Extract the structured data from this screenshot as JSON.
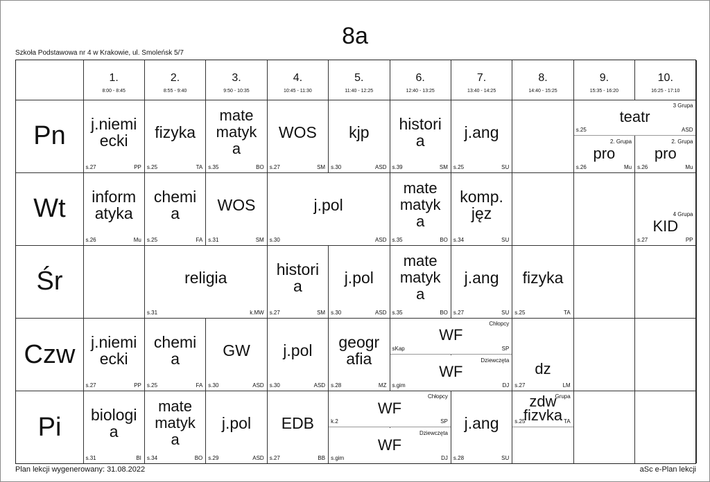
{
  "title": "8a",
  "school": "Szkoła Podstawowa nr 4 w Krakowie, ul. Smoleńsk 5/7",
  "footer": {
    "generated": "Plan lekcji wygenerowany: 31.08.2022",
    "app": "aSc e-Plan lekcji"
  },
  "periods": [
    {
      "num": "1.",
      "time": "8:00 - 8:45"
    },
    {
      "num": "2.",
      "time": "8:55 - 9:40"
    },
    {
      "num": "3.",
      "time": "9:50 - 10:35"
    },
    {
      "num": "4.",
      "time": "10:45 - 11:30"
    },
    {
      "num": "5.",
      "time": "11:40 - 12:25"
    },
    {
      "num": "6.",
      "time": "12:40 - 13:25"
    },
    {
      "num": "7.",
      "time": "13:40 - 14:25"
    },
    {
      "num": "8.",
      "time": "14:40 - 15:25"
    },
    {
      "num": "9.",
      "time": "15:35 - 16:20"
    },
    {
      "num": "10.",
      "time": "16:25 - 17:10"
    }
  ],
  "days": [
    "Pn",
    "Wt",
    "Śr",
    "Czw",
    "Pi"
  ],
  "lessons": [
    {
      "day": 0,
      "p": 0,
      "span": 1,
      "subject": "j.niemi\necki",
      "room": "s.27",
      "teacher": "PP"
    },
    {
      "day": 0,
      "p": 1,
      "span": 1,
      "subject": "fizyka",
      "room": "s.25",
      "teacher": "TA"
    },
    {
      "day": 0,
      "p": 2,
      "span": 1,
      "subject": "mate\nmatyk\na",
      "room": "s.35",
      "teacher": "BO"
    },
    {
      "day": 0,
      "p": 3,
      "span": 1,
      "subject": "WOS",
      "room": "s.27",
      "teacher": "SM"
    },
    {
      "day": 0,
      "p": 4,
      "span": 1,
      "subject": "kjp",
      "room": "s.30",
      "teacher": "ASD"
    },
    {
      "day": 0,
      "p": 5,
      "span": 1,
      "subject": "histori\na",
      "room": "s.39",
      "teacher": "SM"
    },
    {
      "day": 0,
      "p": 6,
      "span": 1,
      "subject": "j.ang",
      "room": "s.25",
      "teacher": "SU"
    },
    {
      "day": 0,
      "p": 8,
      "span": 2,
      "part": "top",
      "subject": "teatr",
      "room": "s.25",
      "teacher": "ASD",
      "group": "3 Grupa"
    },
    {
      "day": 0,
      "p": 8,
      "span": 1,
      "part": "bottom",
      "subject": "pro",
      "room": "s.26",
      "teacher": "Mu",
      "group": "2. Grupa"
    },
    {
      "day": 0,
      "p": 9,
      "span": 1,
      "part": "bottom",
      "subject": "pro",
      "room": "s.26",
      "teacher": "Mu",
      "group": "2. Grupa"
    },
    {
      "day": 1,
      "p": 0,
      "span": 1,
      "subject": "inform\natyka",
      "room": "s.26",
      "teacher": "Mu"
    },
    {
      "day": 1,
      "p": 1,
      "span": 1,
      "subject": "chemi\na",
      "room": "s.25",
      "teacher": "FA"
    },
    {
      "day": 1,
      "p": 2,
      "span": 1,
      "subject": "WOS",
      "room": "s.31",
      "teacher": "SM"
    },
    {
      "day": 1,
      "p": 3,
      "span": 2,
      "subject": "j.pol",
      "room": "s.30",
      "teacher": "ASD"
    },
    {
      "day": 1,
      "p": 5,
      "span": 1,
      "subject": "mate\nmatyk\na",
      "room": "s.35",
      "teacher": "BO"
    },
    {
      "day": 1,
      "p": 6,
      "span": 1,
      "subject": "komp.\njęz",
      "room": "s.34",
      "teacher": "SU"
    },
    {
      "day": 1,
      "p": 9,
      "span": 1,
      "part": "bottom",
      "subject": "KID",
      "room": "s.27",
      "teacher": "PP",
      "group": "4 Grupa"
    },
    {
      "day": 2,
      "p": 1,
      "span": 2,
      "subject": "religia",
      "room": "s.31",
      "teacher": "k.MW"
    },
    {
      "day": 2,
      "p": 3,
      "span": 1,
      "subject": "histori\na",
      "room": "s.27",
      "teacher": "SM"
    },
    {
      "day": 2,
      "p": 4,
      "span": 1,
      "subject": "j.pol",
      "room": "s.30",
      "teacher": "ASD"
    },
    {
      "day": 2,
      "p": 5,
      "span": 1,
      "subject": "mate\nmatyk\na",
      "room": "s.35",
      "teacher": "BO"
    },
    {
      "day": 2,
      "p": 6,
      "span": 1,
      "subject": "j.ang",
      "room": "s.27",
      "teacher": "SU"
    },
    {
      "day": 2,
      "p": 7,
      "span": 1,
      "subject": "fizyka",
      "room": "s.25",
      "teacher": "TA"
    },
    {
      "day": 3,
      "p": 0,
      "span": 1,
      "subject": "j.niemi\necki",
      "room": "s.27",
      "teacher": "PP"
    },
    {
      "day": 3,
      "p": 1,
      "span": 1,
      "subject": "chemi\na",
      "room": "s.25",
      "teacher": "FA"
    },
    {
      "day": 3,
      "p": 2,
      "span": 1,
      "subject": "GW",
      "room": "s.30",
      "teacher": "ASD"
    },
    {
      "day": 3,
      "p": 3,
      "span": 1,
      "subject": "j.pol",
      "room": "s.30",
      "teacher": "ASD"
    },
    {
      "day": 3,
      "p": 4,
      "span": 1,
      "subject": "geogr\nafia",
      "room": "s.28",
      "teacher": "MZ"
    },
    {
      "day": 3,
      "p": 5,
      "span": 2,
      "part": "top",
      "subject": "WF",
      "room": "sKap",
      "teacher": "SP",
      "group": "Chłopcy"
    },
    {
      "day": 3,
      "p": 5,
      "span": 2,
      "part": "bottom",
      "subject": "WF",
      "room": "s.gim",
      "teacher": "DJ",
      "group": "Dziewczęta"
    },
    {
      "day": 3,
      "p": 7,
      "span": 1,
      "part": "bottom",
      "subject": "dz",
      "room": "s.27",
      "teacher": "LM"
    },
    {
      "day": 4,
      "p": 0,
      "span": 1,
      "subject": "biologi\na",
      "room": "s.31",
      "teacher": "BI"
    },
    {
      "day": 4,
      "p": 1,
      "span": 1,
      "subject": "mate\nmatyk\na",
      "room": "s.34",
      "teacher": "BO"
    },
    {
      "day": 4,
      "p": 2,
      "span": 1,
      "subject": "j.pol",
      "room": "s.29",
      "teacher": "ASD"
    },
    {
      "day": 4,
      "p": 3,
      "span": 1,
      "subject": "EDB",
      "room": "s.27",
      "teacher": "BB"
    },
    {
      "day": 4,
      "p": 4,
      "span": 2,
      "part": "top",
      "subject": "WF",
      "room": "k.2",
      "teacher": "SP",
      "group": "Chłopcy"
    },
    {
      "day": 4,
      "p": 4,
      "span": 2,
      "part": "bottom",
      "subject": "WF",
      "room": "s.gim",
      "teacher": "DJ",
      "group": "Dziewczęta"
    },
    {
      "day": 4,
      "p": 6,
      "span": 1,
      "subject": "j.ang",
      "room": "s.28",
      "teacher": "SU"
    },
    {
      "day": 4,
      "p": 7,
      "span": 1,
      "part": "top",
      "subject": "zdw\nfizvka",
      "room": "s.25",
      "teacher": "TA",
      "group": "Grupa"
    }
  ]
}
